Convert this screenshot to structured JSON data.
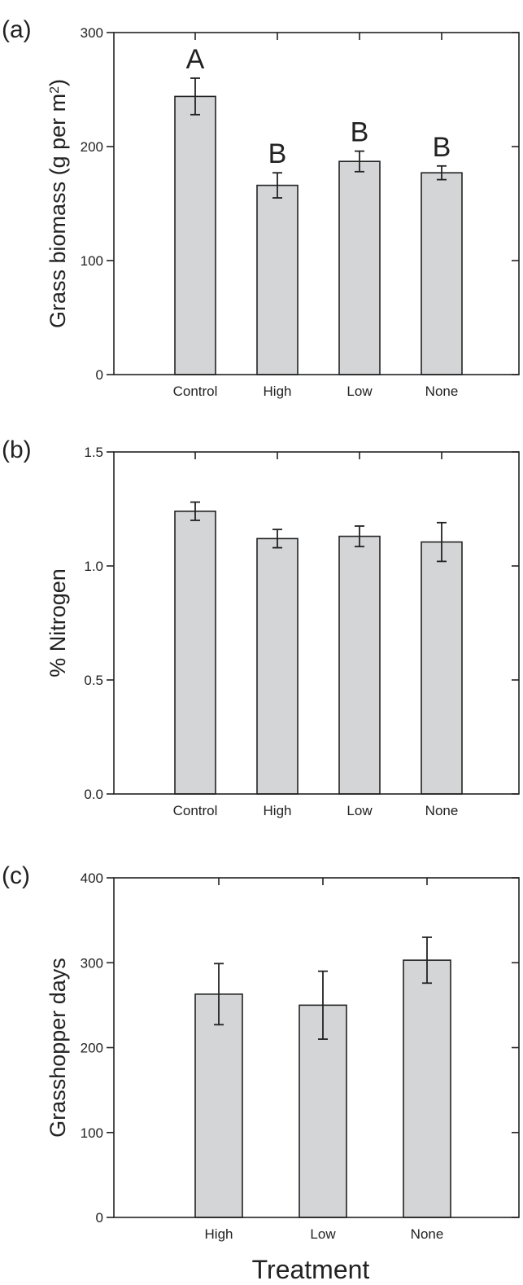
{
  "chart_data": [
    {
      "type": "bar",
      "panel_label": "(a)",
      "categories": [
        "Control",
        "High",
        "Low",
        "None"
      ],
      "values": [
        244,
        166,
        187,
        177
      ],
      "errors": [
        16,
        11,
        9,
        6
      ],
      "significance_letters": [
        "A",
        "B",
        "B",
        "B"
      ],
      "ylabel": "Grass biomass (g per m",
      "ylabel_sup": "2",
      "ylabel_tail": ")",
      "ylim": [
        0,
        300
      ],
      "yticks": [
        "0",
        "100",
        "200",
        "300"
      ],
      "grid": false
    },
    {
      "type": "bar",
      "panel_label": "(b)",
      "categories": [
        "Control",
        "High",
        "Low",
        "None"
      ],
      "values": [
        1.24,
        1.12,
        1.13,
        1.105
      ],
      "errors": [
        0.04,
        0.04,
        0.045,
        0.085
      ],
      "ylabel": "% Nitrogen",
      "ylim": [
        0,
        1.5
      ],
      "yticks": [
        "0.0",
        "0.5",
        "1.0",
        "1.5"
      ],
      "grid": false
    },
    {
      "type": "bar",
      "panel_label": "(c)",
      "categories": [
        "High",
        "Low",
        "None"
      ],
      "values": [
        263,
        250,
        303
      ],
      "errors": [
        36,
        40,
        27
      ],
      "ylabel": "Grasshopper days",
      "ylim": [
        0,
        400
      ],
      "yticks": [
        "0",
        "100",
        "200",
        "300",
        "400"
      ],
      "xlabel": "Treatment",
      "grid": false
    }
  ]
}
